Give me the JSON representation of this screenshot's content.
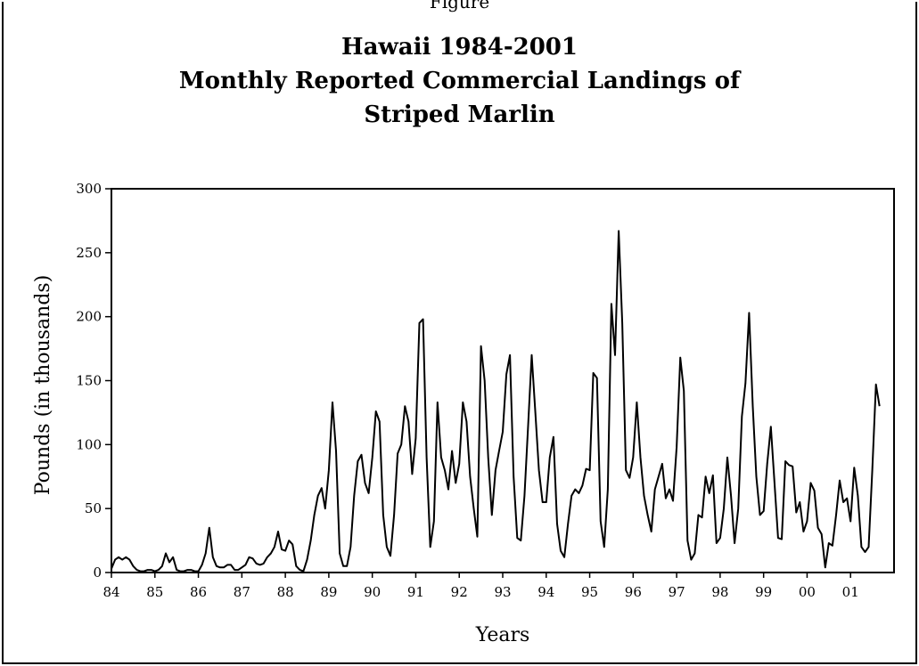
{
  "chart_data": {
    "type": "line",
    "title_lines": [
      "Hawaii 1984-2001",
      "Monthly Reported Commercial Landings of",
      "Striped Marlin"
    ],
    "top_cut_text": "Figure",
    "xlabel": "Years",
    "ylabel": "Pounds (in thousands)",
    "ylim": [
      0,
      300
    ],
    "yticks": [
      0,
      50,
      100,
      150,
      200,
      250,
      300
    ],
    "xlim": [
      1984,
      2002
    ],
    "xtick_labels": [
      "84",
      "85",
      "86",
      "87",
      "88",
      "89",
      "90",
      "91",
      "92",
      "93",
      "94",
      "95",
      "96",
      "97",
      "98",
      "99",
      "00",
      "01"
    ],
    "grid": false,
    "line_color": "#000000",
    "series": [
      {
        "values": [
          3,
          10,
          12,
          10,
          12,
          10,
          5,
          2,
          1,
          1,
          2,
          2,
          1,
          2,
          5,
          15,
          8,
          12,
          2,
          1,
          1,
          2,
          2,
          1,
          1,
          6,
          15,
          35,
          12,
          5,
          4,
          4,
          6,
          6,
          2,
          2,
          4,
          6,
          12,
          11,
          7,
          6,
          7,
          12,
          15,
          20,
          32,
          18,
          17,
          25,
          22,
          5,
          2,
          1,
          10,
          25,
          45,
          60,
          66,
          50,
          80,
          133,
          95,
          15,
          5,
          5,
          20,
          60,
          87,
          92,
          70,
          62,
          90,
          126,
          118,
          45,
          20,
          13,
          45,
          93,
          100,
          130,
          118,
          77,
          105,
          195,
          198,
          90,
          20,
          40,
          133,
          90,
          80,
          65,
          95,
          70,
          85,
          133,
          118,
          75,
          50,
          28,
          177,
          150,
          90,
          45,
          80,
          95,
          110,
          155,
          170,
          75,
          27,
          25,
          60,
          115,
          170,
          125,
          80,
          55,
          55,
          90,
          106,
          38,
          17,
          12,
          38,
          60,
          65,
          62,
          68,
          81,
          80,
          156,
          152,
          40,
          20,
          65,
          210,
          170,
          267,
          195,
          80,
          74,
          90,
          133,
          90,
          60,
          45,
          32,
          65,
          75,
          85,
          58,
          65,
          56,
          98,
          168,
          142,
          25,
          10,
          15,
          45,
          43,
          75,
          62,
          76,
          23,
          27,
          50,
          90,
          60,
          23,
          50,
          122,
          148,
          203,
          130,
          75,
          45,
          48,
          85,
          114,
          70,
          27,
          26,
          87,
          84,
          83,
          47,
          55,
          32,
          40,
          70,
          64,
          35,
          30,
          4,
          23,
          21,
          45,
          72,
          55,
          58,
          40,
          82,
          60,
          20,
          16,
          20,
          80,
          147,
          130
        ]
      }
    ]
  }
}
